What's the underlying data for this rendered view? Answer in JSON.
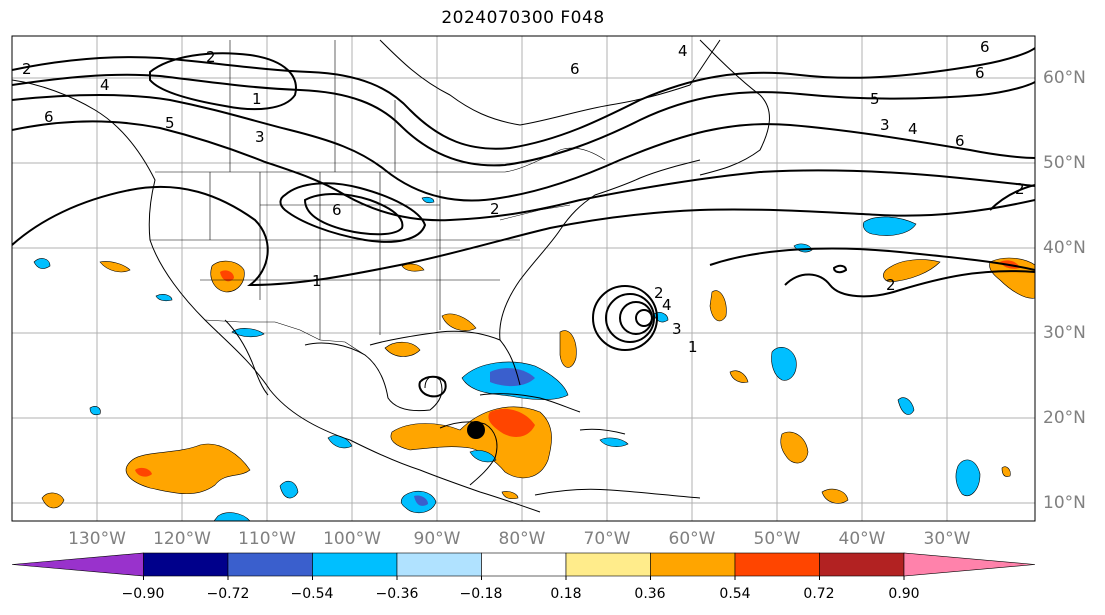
{
  "title": "2024070300 F048",
  "map": {
    "lon_labels": [
      "130°W",
      "120°W",
      "110°W",
      "100°W",
      "90°W",
      "80°W",
      "70°W",
      "60°W",
      "50°W",
      "40°W",
      "30°W"
    ],
    "lat_labels": [
      "60°N",
      "50°N",
      "40°N",
      "30°N",
      "20°N",
      "10°N"
    ],
    "contour_labels": [
      "2",
      "4",
      "6",
      "5",
      "1",
      "3",
      "2",
      "6",
      "4",
      "6",
      "3",
      "4",
      "6",
      "5",
      "6",
      "2",
      "1",
      "2",
      "6",
      "4",
      "3",
      "1",
      "2",
      "2"
    ],
    "storm_marker": "hurricane-position-dot"
  },
  "colorbar": {
    "colors": [
      "#9932CC",
      "#00008B",
      "#3A5FCD",
      "#00BFFF",
      "#B0E2FF",
      "#FFFFFF",
      "#FFEC8B",
      "#FFA500",
      "#FF4500",
      "#B22222",
      "#FF82AB"
    ],
    "ticks": [
      "−0.90",
      "−0.72",
      "−0.54",
      "−0.36",
      "−0.18",
      "0.18",
      "0.36",
      "0.54",
      "0.72",
      "0.90"
    ]
  }
}
